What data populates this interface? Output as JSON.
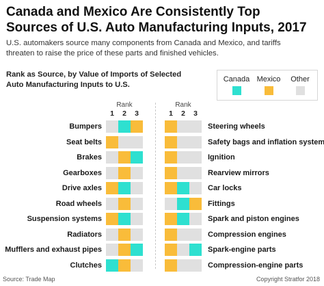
{
  "title": "Canada and Mexico Are Consistently Top Sources of U.S. Auto Manufacturing Inputs, 2017",
  "subtitle": "U.S. automakers source many components from Canada and Mexico, and tariffs threaten to raise the price of these parts and finished vehicles.",
  "colors": {
    "Canada": "#2ee0d0",
    "Mexico": "#f9bc3a",
    "Other": "#e0e0e0"
  },
  "source": "Source: Trade Map",
  "copyright": "Copyright Stratfor 2018",
  "chart_data": {
    "type": "table",
    "title": "Rank as Source, by Value of Imports of Selected Auto Manufacturing Inputs to U.S.",
    "rank_header": "Rank",
    "ranks": [
      "1",
      "2",
      "3"
    ],
    "legend": [
      "Canada",
      "Mexico",
      "Other"
    ],
    "left": [
      {
        "name": "Bumpers",
        "ranks": [
          "Other",
          "Canada",
          "Mexico"
        ]
      },
      {
        "name": "Seat belts",
        "ranks": [
          "Mexico",
          "Other",
          "Other"
        ]
      },
      {
        "name": "Brakes",
        "ranks": [
          "Other",
          "Mexico",
          "Canada"
        ]
      },
      {
        "name": "Gearboxes",
        "ranks": [
          "Other",
          "Mexico",
          "Other"
        ]
      },
      {
        "name": "Drive axles",
        "ranks": [
          "Mexico",
          "Canada",
          "Other"
        ]
      },
      {
        "name": "Road wheels",
        "ranks": [
          "Other",
          "Mexico",
          "Other"
        ]
      },
      {
        "name": "Suspension systems",
        "ranks": [
          "Mexico",
          "Canada",
          "Other"
        ]
      },
      {
        "name": "Radiators",
        "ranks": [
          "Other",
          "Mexico",
          "Other"
        ]
      },
      {
        "name": "Mufflers and exhaust pipes",
        "ranks": [
          "Other",
          "Mexico",
          "Canada"
        ]
      },
      {
        "name": "Clutches",
        "ranks": [
          "Canada",
          "Mexico",
          "Other"
        ]
      }
    ],
    "right": [
      {
        "name": "Steering wheels",
        "ranks": [
          "Mexico",
          "Other",
          "Other"
        ]
      },
      {
        "name": "Safety bags and inflation system",
        "ranks": [
          "Mexico",
          "Other",
          "Other"
        ]
      },
      {
        "name": "Ignition",
        "ranks": [
          "Mexico",
          "Other",
          "Other"
        ]
      },
      {
        "name": "Rearview mirrors",
        "ranks": [
          "Mexico",
          "Other",
          "Other"
        ]
      },
      {
        "name": "Car locks",
        "ranks": [
          "Mexico",
          "Canada",
          "Other"
        ]
      },
      {
        "name": "Fittings",
        "ranks": [
          "Other",
          "Canada",
          "Mexico"
        ]
      },
      {
        "name": "Spark and piston engines",
        "ranks": [
          "Mexico",
          "Canada",
          "Other"
        ]
      },
      {
        "name": "Compression engines",
        "ranks": [
          "Mexico",
          "Other",
          "Other"
        ]
      },
      {
        "name": "Spark-engine parts",
        "ranks": [
          "Mexico",
          "Other",
          "Canada"
        ]
      },
      {
        "name": "Compression-engine parts",
        "ranks": [
          "Mexico",
          "Other",
          "Other"
        ]
      }
    ]
  }
}
